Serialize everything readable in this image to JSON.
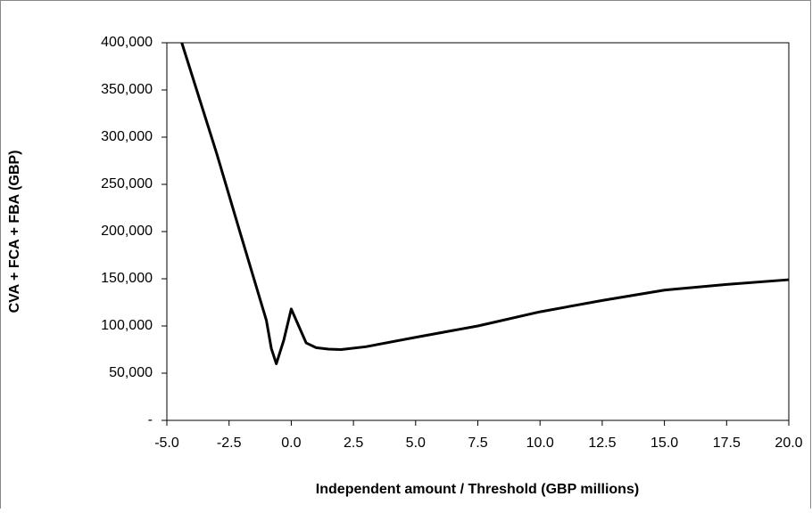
{
  "chart_data": {
    "type": "line",
    "x_label": "Independent amount / Threshold (GBP millions)",
    "y_label": "CVA + FCA + FBA (GBP)",
    "x": [
      -4.4,
      -3.0,
      -2.0,
      -1.0,
      -0.8,
      -0.6,
      -0.3,
      0.0,
      0.3,
      0.6,
      1.0,
      1.5,
      2.0,
      3.0,
      5.0,
      7.5,
      10.0,
      12.5,
      15.0,
      17.5,
      20.0
    ],
    "series": [
      {
        "color": "#000000",
        "values": [
          400000,
          283000,
          194000,
          106000,
          76000,
          60000,
          85000,
          118000,
          100000,
          82000,
          77000,
          75500,
          75000,
          78000,
          88000,
          100000,
          115000,
          127000,
          138000,
          144000,
          149000
        ]
      }
    ],
    "xlim": [
      -5,
      20
    ],
    "ylim": [
      0,
      400000
    ],
    "xticks": [
      {
        "value": -5,
        "label": "-5.0"
      },
      {
        "value": -2.5,
        "label": "-2.5"
      },
      {
        "value": 0,
        "label": "0.0"
      },
      {
        "value": 2.5,
        "label": "2.5"
      },
      {
        "value": 5,
        "label": "5.0"
      },
      {
        "value": 7.5,
        "label": "7.5"
      },
      {
        "value": 10,
        "label": "10.0"
      },
      {
        "value": 12.5,
        "label": "12.5"
      },
      {
        "value": 15,
        "label": "15.0"
      },
      {
        "value": 17.5,
        "label": "17.5"
      },
      {
        "value": 20,
        "label": "20.0"
      }
    ],
    "yticks": [
      {
        "value": 0,
        "label": "-"
      },
      {
        "value": 50000,
        "label": "50,000"
      },
      {
        "value": 100000,
        "label": "100,000"
      },
      {
        "value": 150000,
        "label": "150,000"
      },
      {
        "value": 200000,
        "label": "200,000"
      },
      {
        "value": 250000,
        "label": "250,000"
      },
      {
        "value": 300000,
        "label": "300,000"
      },
      {
        "value": 350000,
        "label": "350,000"
      },
      {
        "value": 400000,
        "label": "400,000"
      }
    ],
    "grid": false
  }
}
